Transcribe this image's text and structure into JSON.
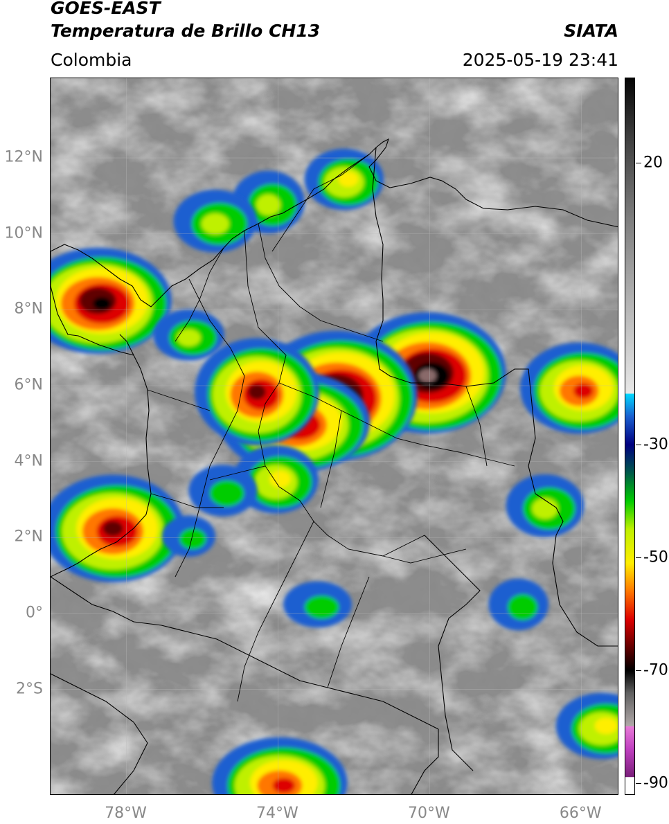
{
  "header": {
    "satellite": "GOES-EAST",
    "product": "Temperatura de Brillo CH13",
    "agency": "SIATA",
    "region": "Colombia",
    "timestamp": "2025-05-19 23:41"
  },
  "map": {
    "lat_ticks": [
      {
        "v": 12,
        "label": "12°N"
      },
      {
        "v": 10,
        "label": "10°N"
      },
      {
        "v": 8,
        "label": "8°N"
      },
      {
        "v": 6,
        "label": "6°N"
      },
      {
        "v": 4,
        "label": "4°N"
      },
      {
        "v": 2,
        "label": "2°N"
      },
      {
        "v": 0,
        "label": "0°"
      },
      {
        "v": -2,
        "label": "2°S"
      }
    ],
    "lon_ticks": [
      {
        "v": -78,
        "label": "78°W"
      },
      {
        "v": -74,
        "label": "74°W"
      },
      {
        "v": -70,
        "label": "70°W"
      },
      {
        "v": -66,
        "label": "66°W"
      }
    ],
    "extent": {
      "lon_min": -80,
      "lon_max": -65,
      "lat_min": -4.8,
      "lat_max": 14.1
    },
    "storm_cells": [
      {
        "lon": -70.0,
        "lat": 6.3,
        "intensity": 1.0
      },
      {
        "lon": -72.4,
        "lat": 5.7,
        "intensity": 0.95
      },
      {
        "lon": -73.5,
        "lat": 5.0,
        "intensity": 0.8
      },
      {
        "lon": -74.5,
        "lat": 5.8,
        "intensity": 0.75
      },
      {
        "lon": -78.7,
        "lat": 8.2,
        "intensity": 0.85
      },
      {
        "lon": -78.3,
        "lat": 2.2,
        "intensity": 0.75
      },
      {
        "lon": -66.0,
        "lat": 5.9,
        "intensity": 0.7
      },
      {
        "lon": -66.9,
        "lat": 2.8,
        "intensity": 0.35
      },
      {
        "lon": -73.9,
        "lat": -4.5,
        "intensity": 0.7
      },
      {
        "lon": -74.2,
        "lat": 10.8,
        "intensity": 0.35
      },
      {
        "lon": -65.4,
        "lat": -3.0,
        "intensity": 0.45
      },
      {
        "lon": -75.6,
        "lat": 10.3,
        "intensity": 0.35
      },
      {
        "lon": -72.2,
        "lat": 11.4,
        "intensity": 0.4
      },
      {
        "lon": -74.0,
        "lat": 3.5,
        "intensity": 0.4
      },
      {
        "lon": -72.9,
        "lat": 0.2,
        "intensity": 0.25
      },
      {
        "lon": -67.6,
        "lat": 0.2,
        "intensity": 0.25
      },
      {
        "lon": -76.3,
        "lat": 7.3,
        "intensity": 0.3
      },
      {
        "lon": -75.4,
        "lat": 3.2,
        "intensity": 0.25
      },
      {
        "lon": -76.3,
        "lat": 2.0,
        "intensity": 0.2
      }
    ]
  },
  "colorbar": {
    "vmin": -92,
    "vmax": 35,
    "labels": [
      {
        "v": 20,
        "label": "20"
      },
      {
        "v": -30,
        "label": "-30"
      },
      {
        "v": -50,
        "label": "-50"
      },
      {
        "v": -70,
        "label": "-70"
      },
      {
        "v": -90,
        "label": "-90"
      }
    ],
    "stops": [
      {
        "t": -92,
        "c": "#ffffff"
      },
      {
        "t": -89,
        "c": "#ffffff"
      },
      {
        "t": -88.9,
        "c": "#7a1f7a"
      },
      {
        "t": -84,
        "c": "#c040c0"
      },
      {
        "t": -80,
        "c": "#e87ad8"
      },
      {
        "t": -79.9,
        "c": "#b0a8a8"
      },
      {
        "t": -74,
        "c": "#606060"
      },
      {
        "t": -70,
        "c": "#000000"
      },
      {
        "t": -66,
        "c": "#600000"
      },
      {
        "t": -61,
        "c": "#dd0000"
      },
      {
        "t": -56,
        "c": "#ff7700"
      },
      {
        "t": -51,
        "c": "#ffee00"
      },
      {
        "t": -45,
        "c": "#bff000"
      },
      {
        "t": -40,
        "c": "#00cc00"
      },
      {
        "t": -35,
        "c": "#005a4a"
      },
      {
        "t": -30,
        "c": "#000080"
      },
      {
        "t": -25,
        "c": "#1a5fd0"
      },
      {
        "t": -21,
        "c": "#00d8ff"
      },
      {
        "t": -20.9,
        "c": "#e8e8e8"
      },
      {
        "t": -5,
        "c": "#b4b4b4"
      },
      {
        "t": 10,
        "c": "#7e7e7e"
      },
      {
        "t": 25,
        "c": "#3c3c3c"
      },
      {
        "t": 35,
        "c": "#050505"
      }
    ]
  },
  "colors": {
    "background": "#ffffff",
    "sea_gray": "#8a8a8a",
    "land_gray": "#909090"
  }
}
